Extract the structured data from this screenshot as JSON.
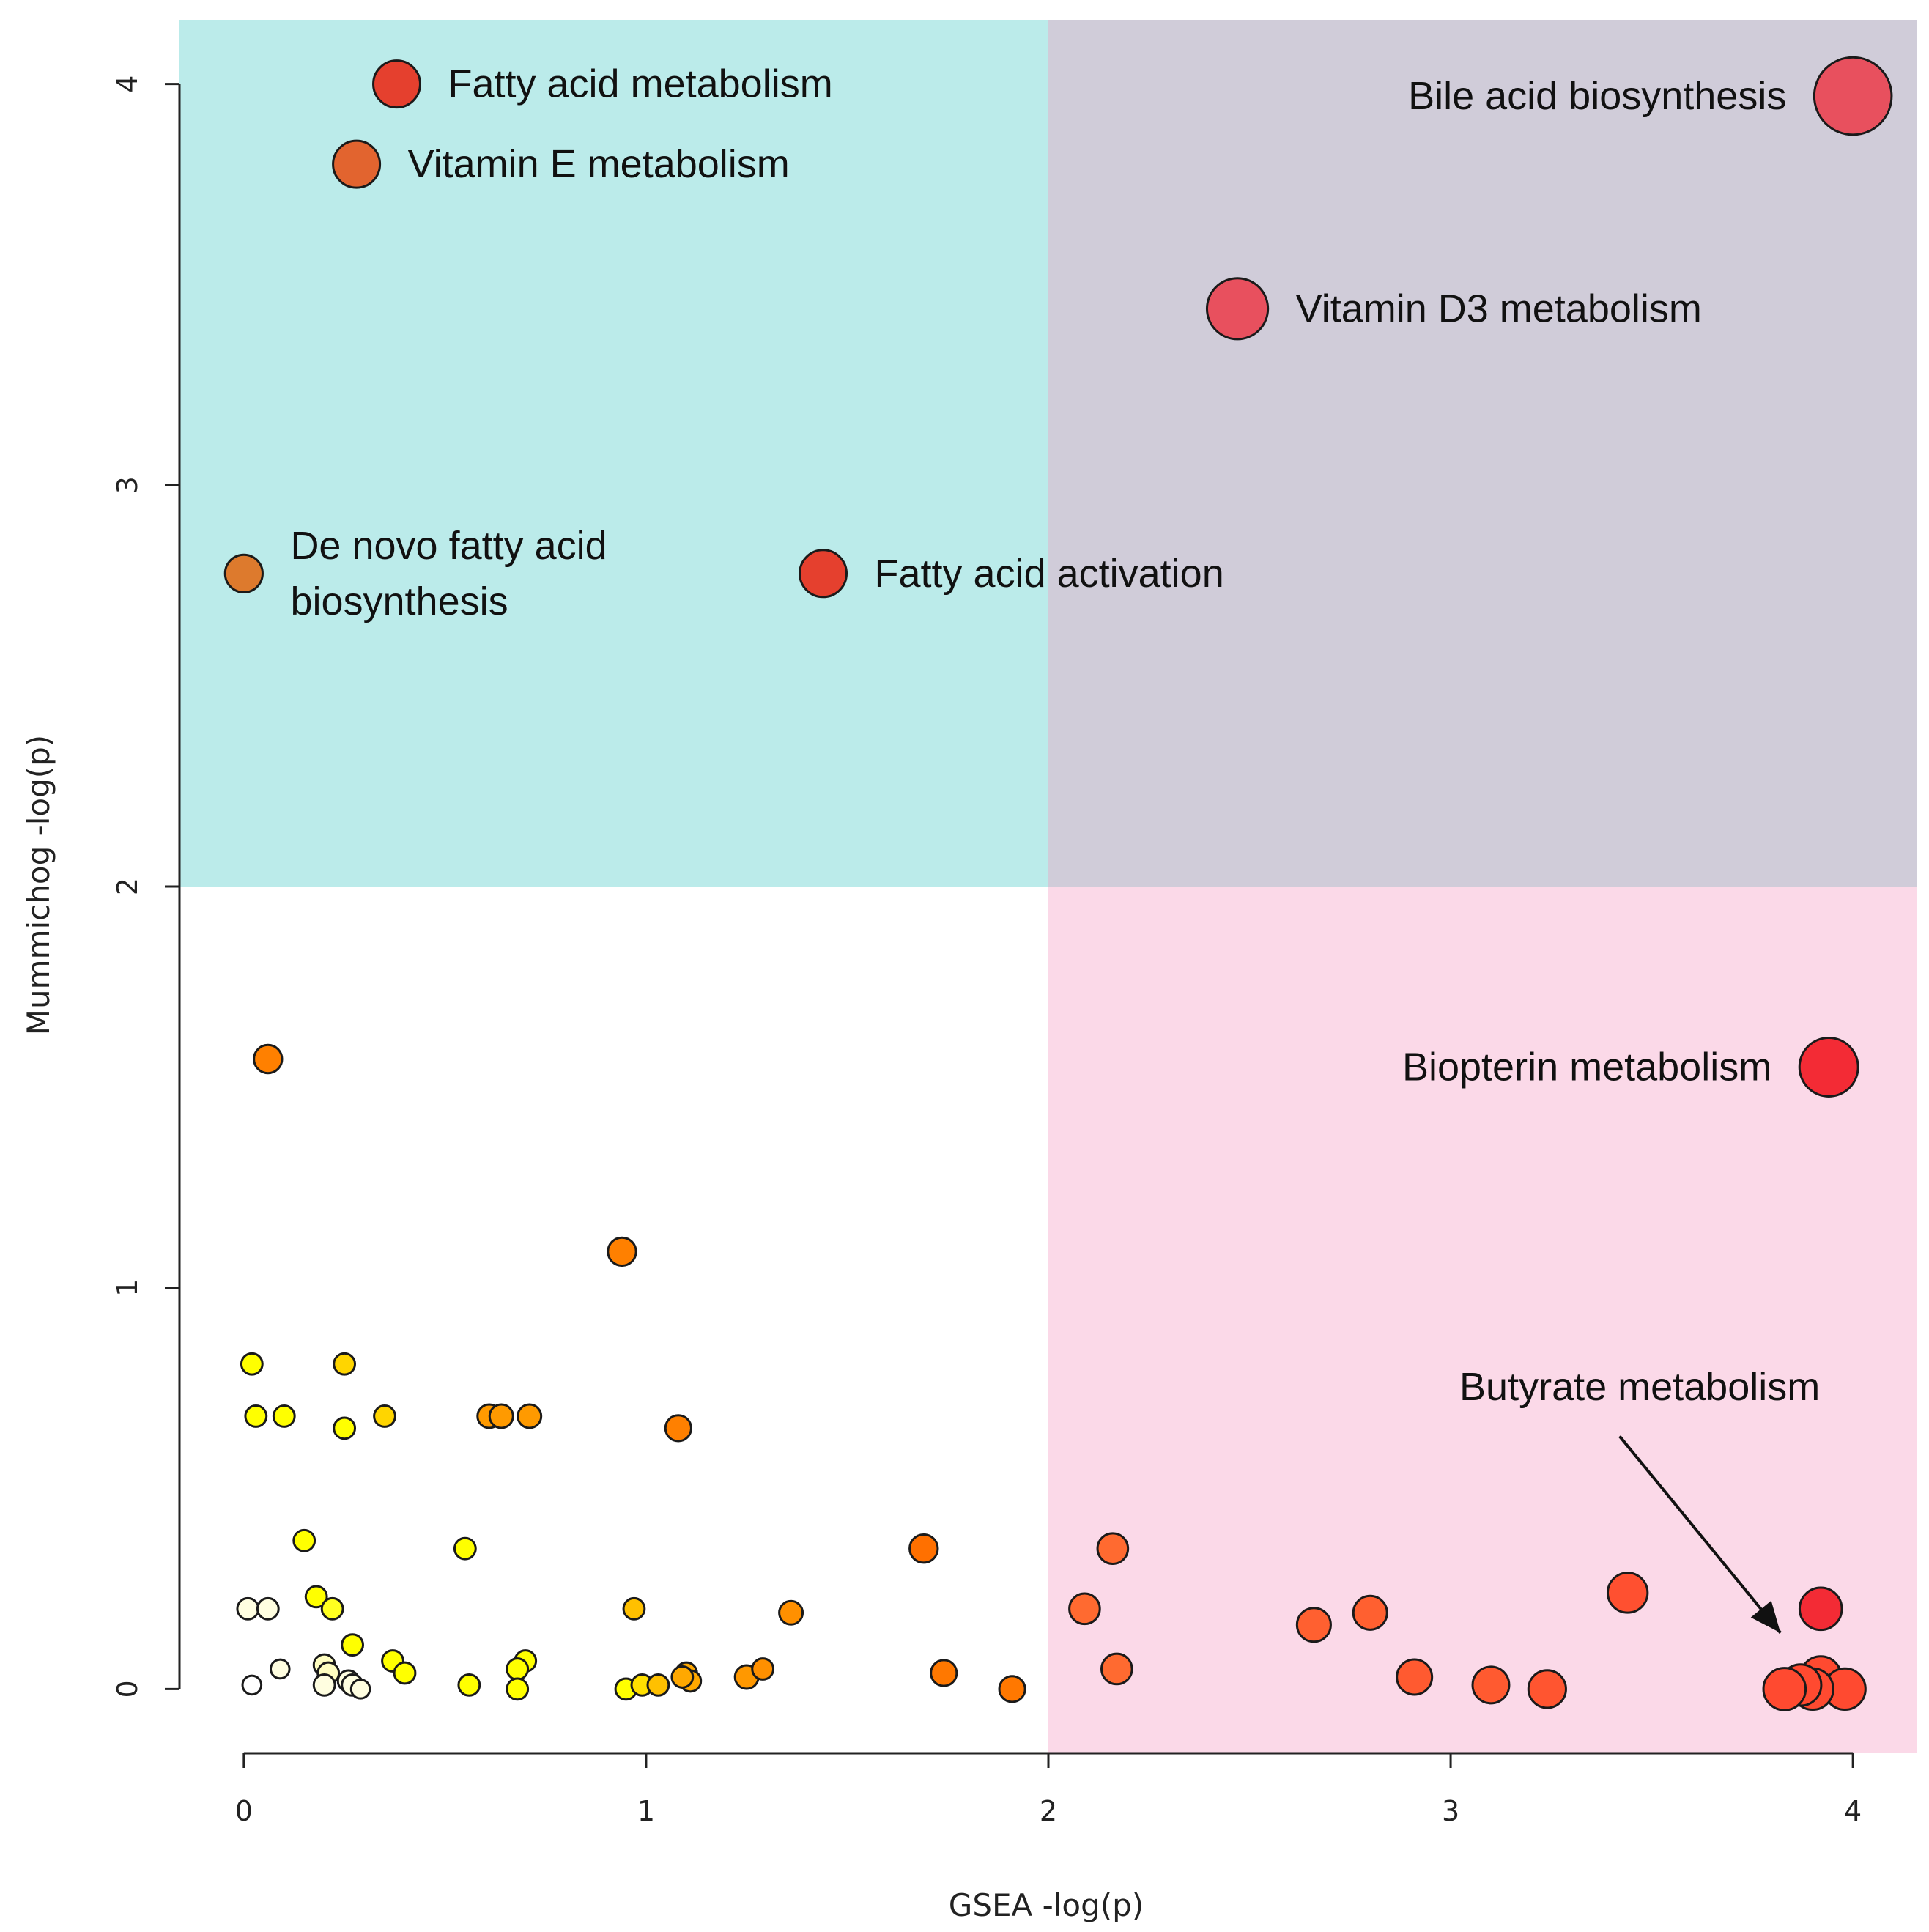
{
  "chart_data": {
    "type": "scatter",
    "xlabel": "GSEA -log(p)",
    "ylabel": "Mummichog -log(p)",
    "xlim": [
      -0.16,
      4.16
    ],
    "ylim": [
      -0.16,
      4.16
    ],
    "x_ticks": [
      "0",
      "1",
      "2",
      "3",
      "4"
    ],
    "y_ticks": [
      "0",
      "1",
      "2",
      "3",
      "4"
    ],
    "threshold_x": 2,
    "threshold_y": 2,
    "quadrant_colors": {
      "top_left": "#bbebea",
      "top_right": "#d0ccd9",
      "bottom_right": "#fbd9e8",
      "bottom_left": "#ffffff"
    },
    "labeled_points": [
      {
        "label": "Fatty acid metabolism",
        "x": 0.38,
        "y": 4.0,
        "size": 1.0,
        "color": "#e5402e",
        "label_side": "right"
      },
      {
        "label": "Vitamin E metabolism",
        "x": 0.28,
        "y": 3.8,
        "size": 1.0,
        "color": "#e2642f",
        "label_side": "right"
      },
      {
        "label": "Bile acid biosynthesis",
        "x": 4.0,
        "y": 3.97,
        "size": 1.65,
        "color": "#e8505e",
        "label_side": "left"
      },
      {
        "label": "Vitamin D3 metabolism",
        "x": 2.47,
        "y": 3.44,
        "size": 1.3,
        "color": "#e8505e",
        "label_side": "right"
      },
      {
        "label": "De novo fatty acid\nbiosynthesis",
        "x": 0.0,
        "y": 2.78,
        "size": 0.8,
        "color": "#dd7a2d",
        "label_side": "right"
      },
      {
        "label": "Fatty acid activation",
        "x": 1.44,
        "y": 2.78,
        "size": 1.0,
        "color": "#e5402e",
        "label_side": "right"
      },
      {
        "label": "Biopterin metabolism",
        "x": 3.94,
        "y": 1.55,
        "size": 1.25,
        "color": "#f32b35",
        "label_side": "left"
      }
    ],
    "annotation": {
      "text": "Butyrate metabolism",
      "text_x": 3.47,
      "text_y": 0.72,
      "arrow_from": [
        3.42,
        0.63
      ],
      "arrow_to": [
        3.82,
        0.14
      ]
    },
    "points": [
      {
        "x": 0.06,
        "y": 1.57,
        "size": 0.6,
        "color": "#ff8000"
      },
      {
        "x": 0.94,
        "y": 1.09,
        "size": 0.6,
        "color": "#ff8000"
      },
      {
        "x": 0.02,
        "y": 0.81,
        "size": 0.45,
        "color": "#ffff00"
      },
      {
        "x": 0.25,
        "y": 0.81,
        "size": 0.45,
        "color": "#ffd500"
      },
      {
        "x": 0.03,
        "y": 0.68,
        "size": 0.45,
        "color": "#ffff00"
      },
      {
        "x": 0.1,
        "y": 0.68,
        "size": 0.45,
        "color": "#ffff00"
      },
      {
        "x": 0.25,
        "y": 0.65,
        "size": 0.45,
        "color": "#ffff00"
      },
      {
        "x": 0.35,
        "y": 0.68,
        "size": 0.45,
        "color": "#ffd500"
      },
      {
        "x": 0.61,
        "y": 0.68,
        "size": 0.5,
        "color": "#ff9a00"
      },
      {
        "x": 0.64,
        "y": 0.68,
        "size": 0.5,
        "color": "#ff9a00"
      },
      {
        "x": 0.71,
        "y": 0.68,
        "size": 0.5,
        "color": "#ff9a00"
      },
      {
        "x": 1.08,
        "y": 0.65,
        "size": 0.55,
        "color": "#ff8000"
      },
      {
        "x": 0.15,
        "y": 0.37,
        "size": 0.45,
        "color": "#ffff00"
      },
      {
        "x": 0.55,
        "y": 0.35,
        "size": 0.45,
        "color": "#ffff00"
      },
      {
        "x": 1.69,
        "y": 0.35,
        "size": 0.6,
        "color": "#ff7000"
      },
      {
        "x": 0.18,
        "y": 0.23,
        "size": 0.45,
        "color": "#ffff00"
      },
      {
        "x": 0.01,
        "y": 0.2,
        "size": 0.45,
        "color": "#fffee0"
      },
      {
        "x": 0.06,
        "y": 0.2,
        "size": 0.45,
        "color": "#fffee0"
      },
      {
        "x": 0.22,
        "y": 0.2,
        "size": 0.45,
        "color": "#ffff20"
      },
      {
        "x": 0.97,
        "y": 0.2,
        "size": 0.45,
        "color": "#ffc000"
      },
      {
        "x": 1.36,
        "y": 0.19,
        "size": 0.5,
        "color": "#ff9000"
      },
      {
        "x": 0.27,
        "y": 0.11,
        "size": 0.45,
        "color": "#ffff00"
      },
      {
        "x": 0.37,
        "y": 0.07,
        "size": 0.45,
        "color": "#ffff00"
      },
      {
        "x": 0.09,
        "y": 0.05,
        "size": 0.4,
        "color": "#fffee0"
      },
      {
        "x": 0.2,
        "y": 0.06,
        "size": 0.45,
        "color": "#fffec0"
      },
      {
        "x": 0.21,
        "y": 0.04,
        "size": 0.45,
        "color": "#fffec0"
      },
      {
        "x": 0.4,
        "y": 0.04,
        "size": 0.45,
        "color": "#ffff00"
      },
      {
        "x": 0.7,
        "y": 0.07,
        "size": 0.45,
        "color": "#ffff00"
      },
      {
        "x": 0.68,
        "y": 0.05,
        "size": 0.45,
        "color": "#ffff00"
      },
      {
        "x": 0.02,
        "y": 0.01,
        "size": 0.4,
        "color": "#ffffff"
      },
      {
        "x": 0.2,
        "y": 0.01,
        "size": 0.45,
        "color": "#fffee0"
      },
      {
        "x": 0.26,
        "y": 0.02,
        "size": 0.45,
        "color": "#fffee0"
      },
      {
        "x": 0.27,
        "y": 0.01,
        "size": 0.45,
        "color": "#fffee0"
      },
      {
        "x": 0.29,
        "y": 0.0,
        "size": 0.4,
        "color": "#fffee0"
      },
      {
        "x": 0.56,
        "y": 0.01,
        "size": 0.45,
        "color": "#ffff00"
      },
      {
        "x": 0.68,
        "y": 0.0,
        "size": 0.45,
        "color": "#ffff00"
      },
      {
        "x": 0.95,
        "y": 0.0,
        "size": 0.45,
        "color": "#ffff00"
      },
      {
        "x": 0.99,
        "y": 0.01,
        "size": 0.45,
        "color": "#ffdf00"
      },
      {
        "x": 1.03,
        "y": 0.01,
        "size": 0.45,
        "color": "#ffc000"
      },
      {
        "x": 1.1,
        "y": 0.04,
        "size": 0.45,
        "color": "#ffa800"
      },
      {
        "x": 1.11,
        "y": 0.02,
        "size": 0.45,
        "color": "#ffa800"
      },
      {
        "x": 1.09,
        "y": 0.03,
        "size": 0.45,
        "color": "#ffa800"
      },
      {
        "x": 1.25,
        "y": 0.03,
        "size": 0.5,
        "color": "#ff9800"
      },
      {
        "x": 1.29,
        "y": 0.05,
        "size": 0.45,
        "color": "#ff9000"
      },
      {
        "x": 1.74,
        "y": 0.04,
        "size": 0.55,
        "color": "#ff7800"
      },
      {
        "x": 1.91,
        "y": 0.0,
        "size": 0.55,
        "color": "#ff7800"
      },
      {
        "x": 2.16,
        "y": 0.35,
        "size": 0.65,
        "color": "#ff6a30"
      },
      {
        "x": 2.09,
        "y": 0.2,
        "size": 0.65,
        "color": "#ff6a30"
      },
      {
        "x": 2.17,
        "y": 0.05,
        "size": 0.65,
        "color": "#ff6a30"
      },
      {
        "x": 2.66,
        "y": 0.16,
        "size": 0.72,
        "color": "#ff6030"
      },
      {
        "x": 2.8,
        "y": 0.19,
        "size": 0.72,
        "color": "#ff6030"
      },
      {
        "x": 2.91,
        "y": 0.03,
        "size": 0.75,
        "color": "#ff5a30"
      },
      {
        "x": 3.1,
        "y": 0.01,
        "size": 0.78,
        "color": "#ff5a30"
      },
      {
        "x": 3.24,
        "y": 0.0,
        "size": 0.8,
        "color": "#ff5530"
      },
      {
        "x": 3.44,
        "y": 0.24,
        "size": 0.85,
        "color": "#ff5030"
      },
      {
        "x": 3.92,
        "y": 0.2,
        "size": 0.9,
        "color": "#f32b35"
      },
      {
        "x": 3.92,
        "y": 0.03,
        "size": 0.88,
        "color": "#ff4a30"
      },
      {
        "x": 3.98,
        "y": 0.0,
        "size": 0.88,
        "color": "#ff4a30"
      },
      {
        "x": 3.9,
        "y": 0.0,
        "size": 0.88,
        "color": "#ff4a30"
      },
      {
        "x": 3.87,
        "y": 0.01,
        "size": 0.88,
        "color": "#ff4a30"
      },
      {
        "x": 3.83,
        "y": 0.0,
        "size": 0.9,
        "color": "#ff4a30"
      }
    ]
  }
}
